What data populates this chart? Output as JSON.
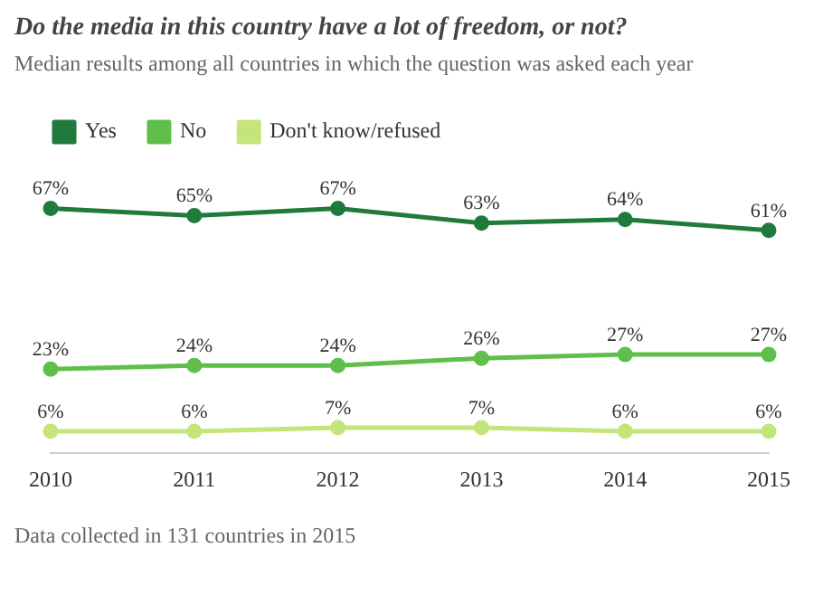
{
  "chart_data": {
    "type": "line",
    "title": "Do the media in this country have a lot of freedom, or not?",
    "subtitle": "Median results among all countries in which the question was asked each year",
    "categories": [
      "2010",
      "2011",
      "2012",
      "2013",
      "2014",
      "2015"
    ],
    "series": [
      {
        "name": "Yes",
        "color": "#1f7a3c",
        "values": [
          67,
          65,
          67,
          63,
          64,
          61
        ],
        "value_labels": [
          "67%",
          "65%",
          "67%",
          "63%",
          "64%",
          "61%"
        ]
      },
      {
        "name": "No",
        "color": "#5fbf4a",
        "values": [
          23,
          24,
          24,
          26,
          27,
          27
        ],
        "value_labels": [
          "23%",
          "24%",
          "24%",
          "26%",
          "27%",
          "27%"
        ]
      },
      {
        "name": "Don't know/refused",
        "color": "#c3e57a",
        "values": [
          6,
          6,
          7,
          7,
          6,
          6
        ],
        "value_labels": [
          "6%",
          "6%",
          "7%",
          "7%",
          "6%",
          "6%"
        ]
      }
    ],
    "grid": false,
    "legend": "top left",
    "marker": "circle",
    "line_style": "solid",
    "annotations": [
      "Data collected in 131 countries in 2015"
    ]
  }
}
